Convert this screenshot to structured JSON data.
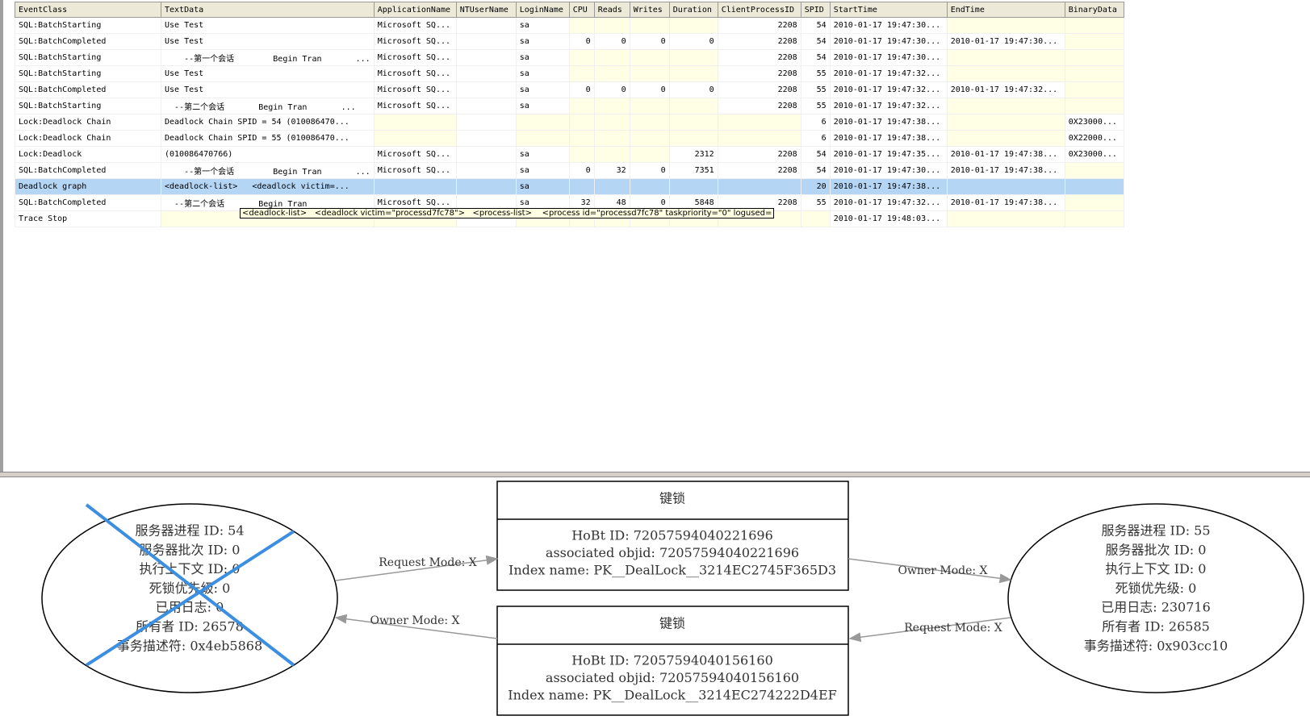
{
  "table": {
    "columns": [
      "EventClass",
      "TextData",
      "ApplicationName",
      "NTUserName",
      "LoginName",
      "CPU",
      "Reads",
      "Writes",
      "Duration",
      "ClientProcessID",
      "SPID",
      "StartTime",
      "EndTime",
      "BinaryData"
    ],
    "selected_row": 10,
    "rows": [
      [
        "SQL:BatchStarting",
        "Use Test",
        "Microsoft SQ...",
        null,
        "sa",
        null,
        null,
        null,
        null,
        2208,
        54,
        "2010-01-17 19:47:30...",
        null,
        null
      ],
      [
        "SQL:BatchCompleted",
        "Use Test",
        "Microsoft SQ...",
        null,
        "sa",
        0,
        0,
        0,
        0,
        2208,
        54,
        "2010-01-17 19:47:30...",
        "2010-01-17 19:47:30...",
        null
      ],
      [
        "SQL:BatchStarting",
        "    --第一个会话        Begin Tran       ...",
        "Microsoft SQ...",
        null,
        "sa",
        null,
        null,
        null,
        null,
        2208,
        54,
        "2010-01-17 19:47:30...",
        null,
        null
      ],
      [
        "SQL:BatchStarting",
        "Use Test",
        "Microsoft SQ...",
        null,
        "sa",
        null,
        null,
        null,
        null,
        2208,
        55,
        "2010-01-17 19:47:32...",
        null,
        null
      ],
      [
        "SQL:BatchCompleted",
        "Use Test",
        "Microsoft SQ...",
        null,
        "sa",
        0,
        0,
        0,
        0,
        2208,
        55,
        "2010-01-17 19:47:32...",
        "2010-01-17 19:47:32...",
        null
      ],
      [
        "SQL:BatchStarting",
        "  --第二个会话       Begin Tran       ...",
        "Microsoft SQ...",
        null,
        "sa",
        null,
        null,
        null,
        null,
        2208,
        55,
        "2010-01-17 19:47:32...",
        null,
        null
      ],
      [
        "Lock:Deadlock Chain",
        "Deadlock Chain SPID = 54 (010086470...",
        null,
        null,
        null,
        null,
        null,
        null,
        null,
        null,
        6,
        "2010-01-17 19:47:38...",
        null,
        "0X23000..."
      ],
      [
        "Lock:Deadlock Chain",
        "Deadlock Chain SPID = 55 (010086470...",
        null,
        null,
        null,
        null,
        null,
        null,
        null,
        null,
        6,
        "2010-01-17 19:47:38...",
        null,
        "0X22000..."
      ],
      [
        "Lock:Deadlock",
        "(010086470766)",
        "Microsoft SQ...",
        null,
        "sa",
        null,
        null,
        null,
        2312,
        2208,
        54,
        "2010-01-17 19:47:35...",
        "2010-01-17 19:47:38...",
        "0X23000..."
      ],
      [
        "SQL:BatchCompleted",
        "    --第一个会话        Begin Tran       ...",
        "Microsoft SQ...",
        null,
        "sa",
        0,
        32,
        0,
        7351,
        2208,
        54,
        "2010-01-17 19:47:30...",
        "2010-01-17 19:47:38...",
        null
      ],
      [
        "Deadlock graph",
        "<deadlock-list>   <deadlock victim=...",
        null,
        null,
        "sa",
        null,
        null,
        null,
        null,
        null,
        20,
        "2010-01-17 19:47:38...",
        null,
        null
      ],
      [
        "SQL:BatchCompleted",
        "  --第二个会话       Begin Tran",
        "Microsoft SQ...",
        null,
        "sa",
        32,
        48,
        0,
        5848,
        2208,
        55,
        "2010-01-17 19:47:32...",
        "2010-01-17 19:47:38...",
        null
      ],
      [
        "Trace Stop",
        null,
        null,
        null,
        null,
        null,
        null,
        null,
        null,
        null,
        null,
        "2010-01-17 19:48:03...",
        null,
        null
      ]
    ]
  },
  "tooltip": "<deadlock-list>   <deadlock victim=\"processd7fc78\">   <process-list>    <process id=\"processd7fc78\" taskpriority=\"0\" logused=",
  "graph": {
    "processes": [
      {
        "victim": true,
        "lines": [
          "服务器进程 ID: 54",
          "服务器批次 ID: 0",
          "执行上下文 ID: 0",
          "死锁优先级: 0",
          "已用日志: 0",
          "所有者 ID: 26578",
          "事务描述符: 0x4eb5868"
        ]
      },
      {
        "victim": false,
        "lines": [
          "服务器进程 ID: 55",
          "服务器批次 ID: 0",
          "执行上下文 ID: 0",
          "死锁优先级: 0",
          "已用日志: 230716",
          "所有者 ID: 26585",
          "事务描述符: 0x903cc10"
        ]
      }
    ],
    "resources": [
      {
        "title": "键锁",
        "lines": [
          "HoBt ID: 72057594040221696",
          "associated objid: 72057594040221696",
          "Index name: PK__DealLock__3214EC2745F365D3"
        ]
      },
      {
        "title": "键锁",
        "lines": [
          "HoBt ID: 72057594040156160",
          "associated objid: 72057594040156160",
          "Index name: PK__DealLock__3214EC274222D4EF"
        ]
      }
    ],
    "edges": [
      {
        "label": "Request Mode: X"
      },
      {
        "label": "Owner Mode: X"
      },
      {
        "label": "Request Mode: X"
      },
      {
        "label": "Owner Mode: X"
      }
    ]
  }
}
